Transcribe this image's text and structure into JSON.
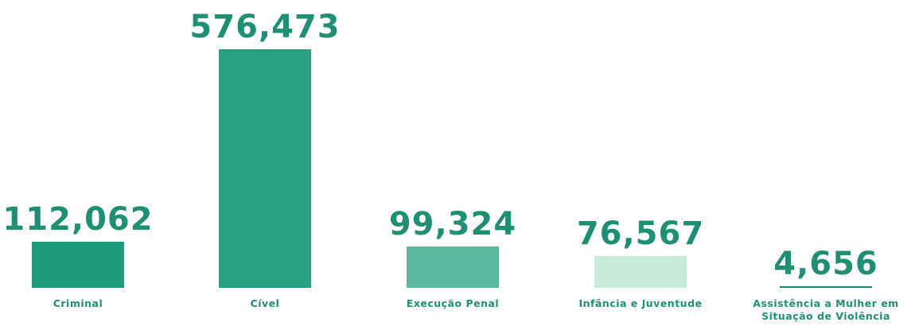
{
  "chart_data": {
    "type": "bar",
    "categories": [
      "Criminal",
      "Cível",
      "Execução Penal",
      "Infância e Juventude",
      "Assistência a Mulher em Situação de Violência"
    ],
    "values": [
      112062,
      576473,
      99324,
      76567,
      4656
    ],
    "value_labels": [
      "112,062",
      "576,473",
      "99,324",
      "76,567",
      "4,656"
    ],
    "colors": [
      "#1f9a7c",
      "#27a083",
      "#5cb89c",
      "#c6ebd9",
      "#1a8a6e"
    ],
    "ylim": [
      0,
      576473
    ]
  }
}
